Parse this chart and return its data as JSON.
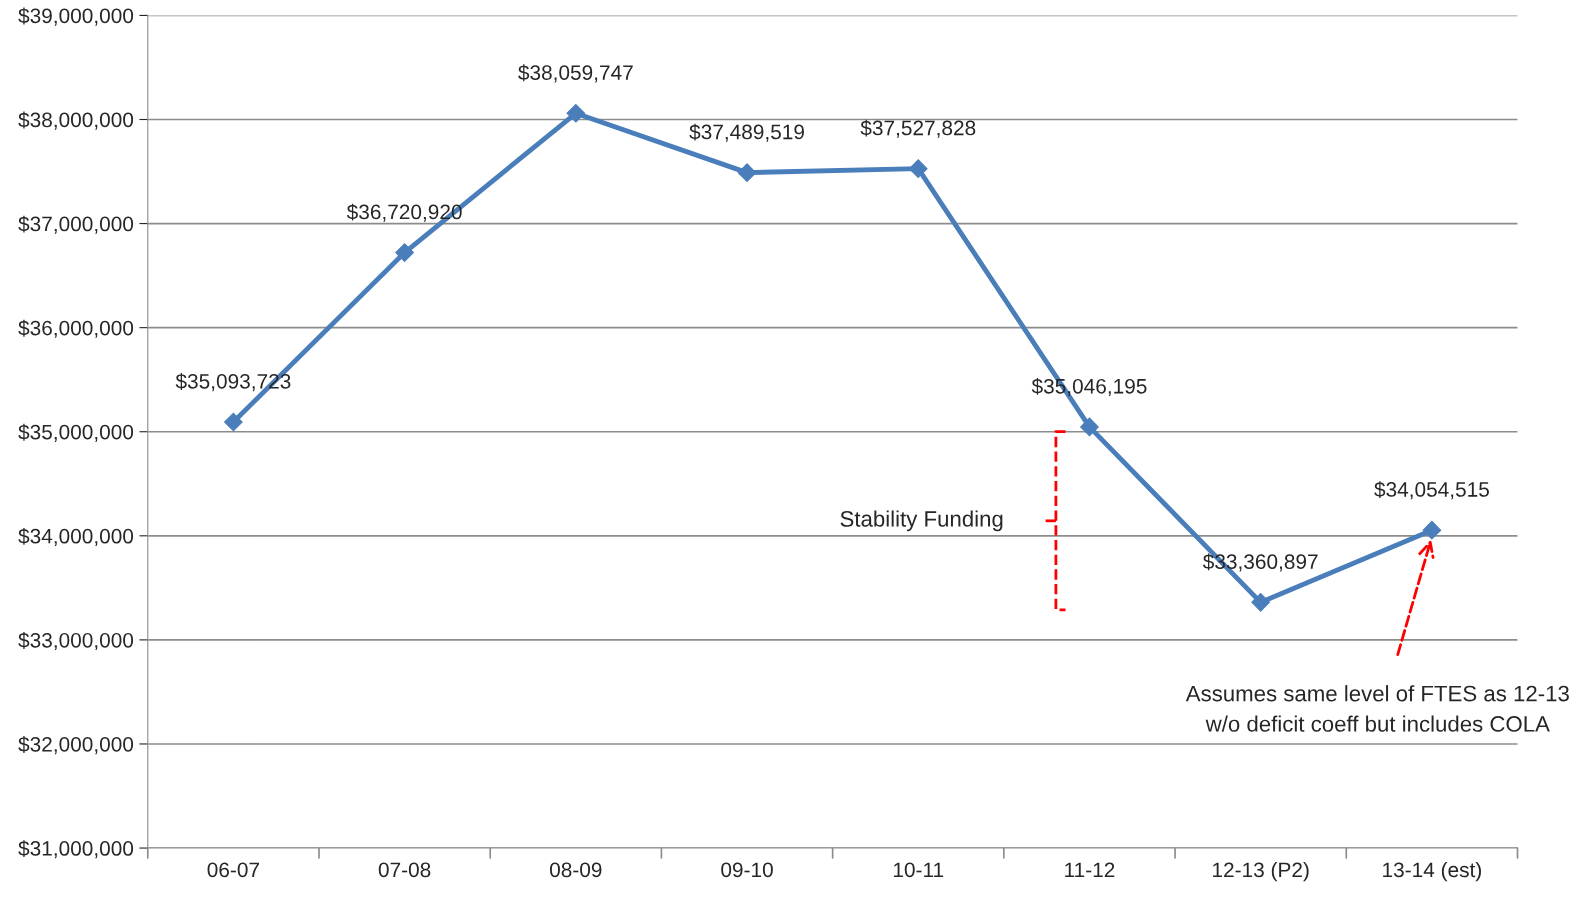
{
  "chart_data": {
    "type": "line",
    "categories": [
      "06-07",
      "07-08",
      "08-09",
      "09-10",
      "10-11",
      "11-12",
      "12-13 (P2)",
      "13-14 (est)"
    ],
    "series": [
      {
        "color": "#4a7ebb",
        "values": [
          35093723,
          36720920,
          38059747,
          37489519,
          37527828,
          35046195,
          33360897,
          34054515
        ],
        "value_labels": [
          "$35,093,723",
          "$36,720,920",
          "$38,059,747",
          "$37,489,519",
          "$37,527,828",
          "$35,046,195",
          "$33,360,897",
          "$34,054,515"
        ]
      }
    ],
    "ylim": [
      31000000,
      39000000
    ],
    "yticks": [
      {
        "value": 31000000,
        "label": "$31,000,000"
      },
      {
        "value": 32000000,
        "label": "$32,000,000"
      },
      {
        "value": 33000000,
        "label": "$33,000,000"
      },
      {
        "value": 34000000,
        "label": "$34,000,000"
      },
      {
        "value": 35000000,
        "label": "$35,000,000"
      },
      {
        "value": 36000000,
        "label": "$36,000,000"
      },
      {
        "value": 37000000,
        "label": "$37,000,000"
      },
      {
        "value": 38000000,
        "label": "$38,000,000"
      },
      {
        "value": 39000000,
        "label": "$39,000,000"
      }
    ],
    "grid": "y",
    "marker": "diamond",
    "line_style": "solid",
    "legend": false,
    "annotations": [
      "Stability Funding",
      "Assumes same level of FTES as 12-13\nw/o deficit coeff but includes COLA"
    ]
  }
}
